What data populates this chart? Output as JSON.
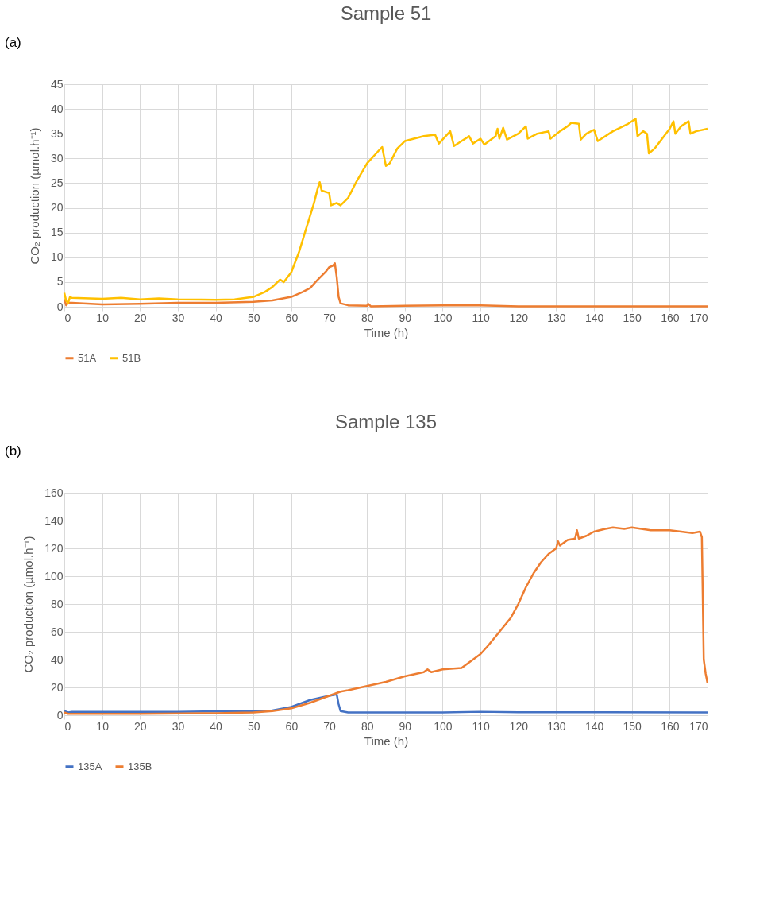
{
  "chart_data": [
    {
      "type": "line",
      "title": "Sample 51",
      "xlabel": "Time (h)",
      "ylabel": "CO₂ production (µmol.h⁻¹)",
      "annotations": [
        "(a)"
      ],
      "xlim": [
        0,
        170
      ],
      "xticks": [
        0,
        10,
        20,
        30,
        40,
        50,
        60,
        70,
        80,
        90,
        100,
        110,
        120,
        130,
        140,
        150,
        160,
        170
      ],
      "ylim": [
        0,
        45
      ],
      "yticks": [
        0,
        5,
        10,
        15,
        20,
        25,
        30,
        35,
        40,
        45
      ],
      "grid": true,
      "legend": "bottom",
      "line_style": "solid",
      "marker": "none",
      "series": [
        {
          "name": "51A",
          "color": "#ed7d31",
          "x": [
            0,
            0.5,
            1,
            2,
            10,
            20,
            30,
            40,
            50,
            55,
            60,
            63,
            65,
            67,
            69,
            70,
            71,
            71.5,
            72,
            72.5,
            73,
            75,
            80,
            80.3,
            81,
            100,
            110,
            120,
            170
          ],
          "values": [
            1.5,
            0.3,
            0.8,
            0.8,
            0.5,
            0.6,
            0.8,
            0.8,
            1.0,
            1.3,
            2,
            3,
            3.8,
            5.5,
            7,
            8,
            8.3,
            8.8,
            6,
            2,
            0.7,
            0.3,
            0.2,
            0.6,
            0.1,
            0.3,
            0.3,
            0.1,
            0.1
          ]
        },
        {
          "name": "51B",
          "color": "#ffc000",
          "x": [
            0,
            0.5,
            1,
            1.5,
            2,
            10,
            15,
            20,
            25,
            30,
            40,
            45,
            50,
            53,
            55,
            57,
            58,
            60,
            62,
            64,
            66,
            67,
            67.5,
            68,
            70,
            70.5,
            72,
            73,
            75,
            77,
            80,
            83,
            84,
            85,
            86,
            88,
            90,
            95,
            98,
            99,
            102,
            103,
            105,
            107,
            108,
            110,
            111,
            114,
            114.5,
            115,
            116,
            117,
            120,
            122,
            122.5,
            125,
            128,
            128.5,
            131,
            133,
            134,
            136,
            136.5,
            138,
            140,
            141,
            145,
            149,
            151,
            151.5,
            153,
            154,
            154.5,
            156,
            158,
            160,
            161,
            161.5,
            163,
            165,
            165.5,
            167,
            170
          ],
          "values": [
            2.8,
            1.2,
            0.8,
            2,
            1.8,
            1.6,
            1.8,
            1.5,
            1.7,
            1.5,
            1.4,
            1.5,
            2,
            3,
            4,
            5.5,
            5,
            7,
            11,
            16,
            21,
            24,
            25.2,
            23.5,
            23,
            20.5,
            21,
            20.5,
            22,
            25,
            29,
            31.5,
            32.3,
            28.5,
            29,
            32,
            33.5,
            34.5,
            34.8,
            33,
            35.5,
            32.5,
            33.5,
            34.5,
            33,
            34,
            32.8,
            34.5,
            36,
            34,
            36.2,
            33.8,
            35,
            36.5,
            34,
            35,
            35.5,
            34,
            35.5,
            36.5,
            37.2,
            37,
            33.8,
            35,
            35.8,
            33.5,
            35.5,
            37,
            38,
            34.5,
            35.5,
            35,
            31,
            32,
            34,
            36,
            37.5,
            35,
            36.5,
            37.5,
            35,
            35.5,
            36
          ]
        }
      ]
    },
    {
      "type": "line",
      "title": "Sample 135",
      "xlabel": "Time (h)",
      "ylabel": "CO₂ production (µmol.h⁻¹)",
      "annotations": [
        "(b)"
      ],
      "xlim": [
        0,
        170
      ],
      "xticks": [
        0,
        10,
        20,
        30,
        40,
        50,
        60,
        70,
        80,
        90,
        100,
        110,
        120,
        130,
        140,
        150,
        160,
        170
      ],
      "ylim": [
        0,
        160
      ],
      "yticks": [
        0,
        20,
        40,
        60,
        80,
        100,
        120,
        140,
        160
      ],
      "grid": true,
      "legend": "bottom",
      "line_style": "solid",
      "marker": "none",
      "series": [
        {
          "name": "135A",
          "color": "#4472c4",
          "x": [
            0,
            1,
            2,
            20,
            30,
            50,
            55,
            60,
            65,
            70,
            72,
            72.5,
            73,
            75,
            100,
            110,
            120,
            170
          ],
          "values": [
            3,
            2,
            2.5,
            2.5,
            2.5,
            3,
            3.5,
            6,
            11,
            14,
            15,
            8,
            3,
            2,
            2,
            2.5,
            2.2,
            2
          ]
        },
        {
          "name": "135B",
          "color": "#ed7d31",
          "x": [
            0,
            1,
            20,
            40,
            50,
            55,
            60,
            65,
            70,
            73,
            75,
            80,
            85,
            90,
            95,
            96,
            97,
            100,
            105,
            107,
            110,
            112,
            115,
            118,
            120,
            122,
            124,
            126,
            128,
            130,
            130.5,
            131,
            133,
            135,
            135.5,
            136,
            138,
            140,
            143,
            145,
            148,
            150,
            155,
            160,
            163,
            166,
            168,
            168.5,
            169,
            169.5,
            170
          ],
          "values": [
            2,
            1,
            1,
            1.5,
            2,
            3,
            5,
            9,
            14,
            17,
            18,
            21,
            24,
            28,
            31,
            33,
            31,
            33,
            34,
            38,
            44,
            50,
            60,
            70,
            80,
            92,
            102,
            110,
            116,
            120,
            125,
            122,
            126,
            127,
            133,
            127,
            129,
            132,
            134,
            135,
            134,
            135,
            133,
            133,
            132,
            131,
            132,
            128,
            40,
            30,
            23
          ]
        }
      ]
    }
  ]
}
